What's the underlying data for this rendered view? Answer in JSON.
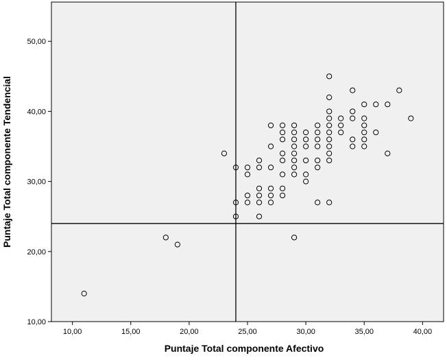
{
  "chart_data": {
    "type": "scatter",
    "title": "",
    "xlabel": "Puntaje Total componente Afectivo",
    "ylabel": "Puntaje Total componente Tendencial",
    "xlim": [
      8.2,
      41.8
    ],
    "ylim": [
      10.0,
      55.6
    ],
    "x_ticks": [
      10,
      15,
      20,
      25,
      30,
      35,
      40
    ],
    "y_ticks": [
      10,
      20,
      30,
      40,
      50
    ],
    "x_tick_labels": [
      "10,00",
      "15,00",
      "20,00",
      "25,00",
      "30,00",
      "35,00",
      "40,00"
    ],
    "y_tick_labels": [
      "10,00",
      "20,00",
      "30,00",
      "40,00",
      "50,00"
    ],
    "reference_lines": {
      "x": 24,
      "y": 24
    },
    "grid": false,
    "legend": "none",
    "colors": {
      "plot_background": "#f0f0f0",
      "marker_edge": "#000000",
      "reference_line": "#000000"
    },
    "points": [
      [
        11,
        14
      ],
      [
        18,
        22
      ],
      [
        19,
        21
      ],
      [
        23,
        34
      ],
      [
        24,
        32
      ],
      [
        24,
        27
      ],
      [
        24,
        25
      ],
      [
        25,
        32
      ],
      [
        25,
        31
      ],
      [
        25,
        28
      ],
      [
        25,
        27
      ],
      [
        26,
        33
      ],
      [
        26,
        32
      ],
      [
        26,
        29
      ],
      [
        26,
        28
      ],
      [
        26,
        27
      ],
      [
        26,
        25
      ],
      [
        27,
        38
      ],
      [
        27,
        35
      ],
      [
        27,
        32
      ],
      [
        27,
        29
      ],
      [
        27,
        28
      ],
      [
        27,
        27
      ],
      [
        28,
        38
      ],
      [
        28,
        37
      ],
      [
        28,
        36
      ],
      [
        28,
        34
      ],
      [
        28,
        33
      ],
      [
        28,
        31
      ],
      [
        28,
        29
      ],
      [
        28,
        28
      ],
      [
        29,
        38
      ],
      [
        29,
        37
      ],
      [
        29,
        36
      ],
      [
        29,
        35
      ],
      [
        29,
        34
      ],
      [
        29,
        33
      ],
      [
        29,
        32
      ],
      [
        29,
        31
      ],
      [
        29,
        22
      ],
      [
        30,
        37
      ],
      [
        30,
        36
      ],
      [
        30,
        35
      ],
      [
        30,
        33
      ],
      [
        30,
        31
      ],
      [
        30,
        30
      ],
      [
        31,
        38
      ],
      [
        31,
        37
      ],
      [
        31,
        36
      ],
      [
        31,
        35
      ],
      [
        31,
        33
      ],
      [
        31,
        32
      ],
      [
        31,
        27
      ],
      [
        32,
        45
      ],
      [
        32,
        42
      ],
      [
        32,
        40
      ],
      [
        32,
        39
      ],
      [
        32,
        38
      ],
      [
        32,
        37
      ],
      [
        32,
        36
      ],
      [
        32,
        35
      ],
      [
        32,
        34
      ],
      [
        32,
        33
      ],
      [
        32,
        27
      ],
      [
        33,
        39
      ],
      [
        33,
        38
      ],
      [
        33,
        37
      ],
      [
        34,
        43
      ],
      [
        34,
        40
      ],
      [
        34,
        39
      ],
      [
        34,
        36
      ],
      [
        34,
        35
      ],
      [
        35,
        41
      ],
      [
        35,
        39
      ],
      [
        35,
        38
      ],
      [
        35,
        37
      ],
      [
        35,
        36
      ],
      [
        35,
        35
      ],
      [
        36,
        41
      ],
      [
        36,
        37
      ],
      [
        37,
        41
      ],
      [
        37,
        34
      ],
      [
        38,
        43
      ],
      [
        39,
        39
      ]
    ]
  }
}
